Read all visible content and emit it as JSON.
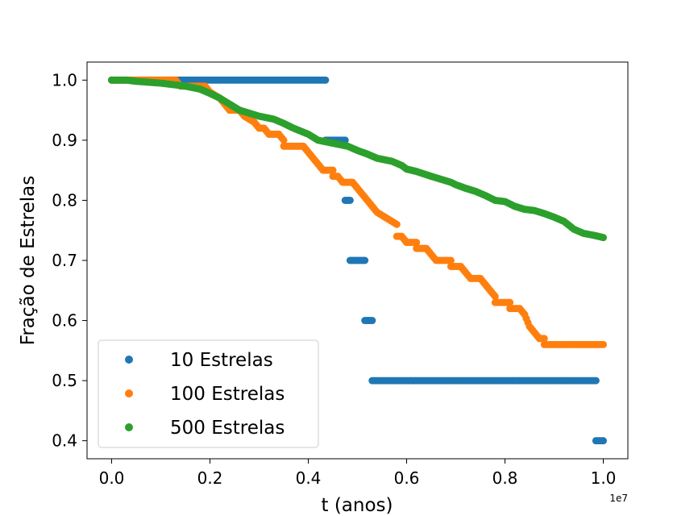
{
  "chart_data": {
    "type": "scatter",
    "title": "",
    "xlabel": "t (anos)",
    "ylabel": "Fração de Estrelas",
    "x_offset_label": "1e7",
    "xlim": [
      -0.05,
      1.05
    ],
    "ylim": [
      0.37,
      1.03
    ],
    "x_ticks": [
      0.0,
      0.2,
      0.4,
      0.6,
      0.8,
      1.0
    ],
    "x_tick_labels": [
      "0.0",
      "0.2",
      "0.4",
      "0.6",
      "0.8",
      "1.0"
    ],
    "y_ticks": [
      0.4,
      0.5,
      0.6,
      0.7,
      0.8,
      0.9,
      1.0
    ],
    "y_tick_labels": [
      "0.4",
      "0.5",
      "0.6",
      "0.7",
      "0.8",
      "0.9",
      "1.0"
    ],
    "grid": false,
    "legend_position": "lower-left",
    "series": [
      {
        "name": "10 Estrelas",
        "color": "#1f77b4",
        "segments": [
          {
            "x_start": 0.0,
            "x_end": 0.435,
            "y": 1.0
          },
          {
            "x_start": 0.435,
            "x_end": 0.475,
            "y": 0.9
          },
          {
            "x_start": 0.475,
            "x_end": 0.485,
            "y": 0.8
          },
          {
            "x_start": 0.485,
            "x_end": 0.515,
            "y": 0.7
          },
          {
            "x_start": 0.515,
            "x_end": 0.53,
            "y": 0.6
          },
          {
            "x_start": 0.53,
            "x_end": 0.985,
            "y": 0.5
          },
          {
            "x_start": 0.985,
            "x_end": 1.0,
            "y": 0.4
          }
        ]
      },
      {
        "name": "100 Estrelas",
        "color": "#ff7f0e",
        "points": [
          [
            0.0,
            1.0
          ],
          [
            0.13,
            1.0
          ],
          [
            0.14,
            0.99
          ],
          [
            0.19,
            0.99
          ],
          [
            0.2,
            0.98
          ],
          [
            0.22,
            0.97
          ],
          [
            0.23,
            0.96
          ],
          [
            0.24,
            0.95
          ],
          [
            0.26,
            0.95
          ],
          [
            0.27,
            0.94
          ],
          [
            0.29,
            0.93
          ],
          [
            0.3,
            0.92
          ],
          [
            0.31,
            0.92
          ],
          [
            0.32,
            0.91
          ],
          [
            0.34,
            0.91
          ],
          [
            0.35,
            0.9
          ],
          [
            0.35,
            0.89
          ],
          [
            0.39,
            0.89
          ],
          [
            0.4,
            0.88
          ],
          [
            0.41,
            0.87
          ],
          [
            0.42,
            0.86
          ],
          [
            0.43,
            0.85
          ],
          [
            0.45,
            0.85
          ],
          [
            0.45,
            0.84
          ],
          [
            0.46,
            0.84
          ],
          [
            0.47,
            0.83
          ],
          [
            0.49,
            0.83
          ],
          [
            0.5,
            0.82
          ],
          [
            0.51,
            0.81
          ],
          [
            0.52,
            0.8
          ],
          [
            0.53,
            0.79
          ],
          [
            0.54,
            0.78
          ],
          [
            0.56,
            0.77
          ],
          [
            0.58,
            0.76
          ],
          [
            0.58,
            0.74
          ],
          [
            0.59,
            0.74
          ],
          [
            0.6,
            0.73
          ],
          [
            0.62,
            0.73
          ],
          [
            0.62,
            0.72
          ],
          [
            0.64,
            0.72
          ],
          [
            0.65,
            0.71
          ],
          [
            0.66,
            0.7
          ],
          [
            0.69,
            0.7
          ],
          [
            0.69,
            0.69
          ],
          [
            0.71,
            0.69
          ],
          [
            0.72,
            0.68
          ],
          [
            0.73,
            0.67
          ],
          [
            0.75,
            0.67
          ],
          [
            0.76,
            0.66
          ],
          [
            0.77,
            0.65
          ],
          [
            0.78,
            0.64
          ],
          [
            0.78,
            0.63
          ],
          [
            0.81,
            0.63
          ],
          [
            0.81,
            0.62
          ],
          [
            0.83,
            0.62
          ],
          [
            0.84,
            0.61
          ],
          [
            0.85,
            0.59
          ],
          [
            0.86,
            0.58
          ],
          [
            0.87,
            0.57
          ],
          [
            0.88,
            0.57
          ],
          [
            0.88,
            0.56
          ],
          [
            1.0,
            0.56
          ]
        ]
      },
      {
        "name": "500 Estrelas",
        "color": "#2ca02c",
        "points": [
          [
            0.0,
            1.0
          ],
          [
            0.03,
            1.0
          ],
          [
            0.05,
            0.998
          ],
          [
            0.1,
            0.995
          ],
          [
            0.15,
            0.99
          ],
          [
            0.18,
            0.985
          ],
          [
            0.2,
            0.978
          ],
          [
            0.22,
            0.97
          ],
          [
            0.24,
            0.96
          ],
          [
            0.26,
            0.95
          ],
          [
            0.28,
            0.945
          ],
          [
            0.3,
            0.94
          ],
          [
            0.33,
            0.935
          ],
          [
            0.35,
            0.928
          ],
          [
            0.37,
            0.92
          ],
          [
            0.4,
            0.91
          ],
          [
            0.42,
            0.9
          ],
          [
            0.45,
            0.895
          ],
          [
            0.48,
            0.89
          ],
          [
            0.5,
            0.883
          ],
          [
            0.52,
            0.877
          ],
          [
            0.54,
            0.87
          ],
          [
            0.57,
            0.865
          ],
          [
            0.59,
            0.858
          ],
          [
            0.6,
            0.852
          ],
          [
            0.62,
            0.848
          ],
          [
            0.65,
            0.84
          ],
          [
            0.67,
            0.835
          ],
          [
            0.69,
            0.83
          ],
          [
            0.7,
            0.826
          ],
          [
            0.72,
            0.82
          ],
          [
            0.74,
            0.815
          ],
          [
            0.76,
            0.808
          ],
          [
            0.78,
            0.8
          ],
          [
            0.8,
            0.798
          ],
          [
            0.82,
            0.79
          ],
          [
            0.84,
            0.785
          ],
          [
            0.86,
            0.783
          ],
          [
            0.88,
            0.778
          ],
          [
            0.9,
            0.772
          ],
          [
            0.92,
            0.765
          ],
          [
            0.94,
            0.752
          ],
          [
            0.96,
            0.745
          ],
          [
            0.98,
            0.742
          ],
          [
            1.0,
            0.738
          ]
        ]
      }
    ]
  }
}
